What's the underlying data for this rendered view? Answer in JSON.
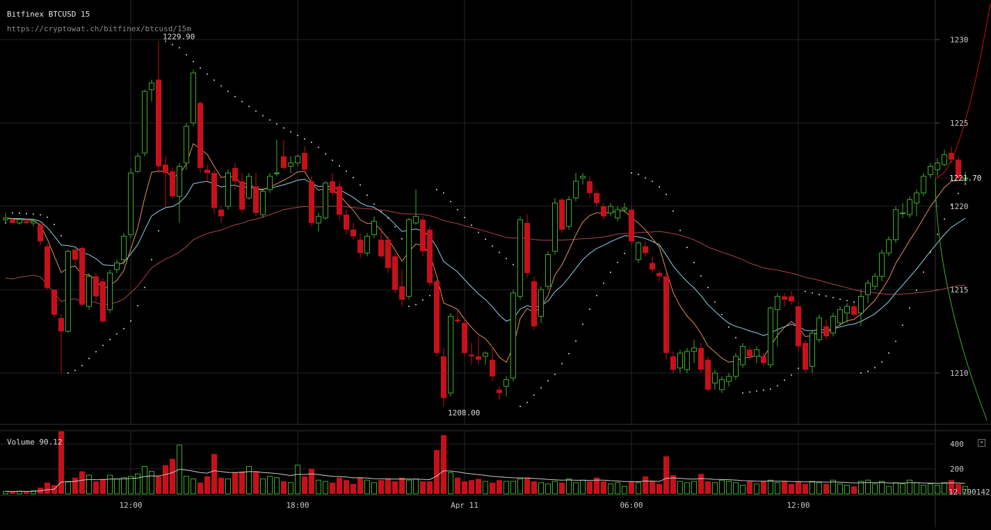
{
  "header": {
    "title": "Bitfinex BTCUSD 15",
    "url": "https://cryptowat.ch/bitfinex/btcusd/15m"
  },
  "volume_panel": {
    "label": "Volume",
    "value": "90.12",
    "close_glyph": "×"
  },
  "chart_data": {
    "type": "candlestick",
    "exchange": "Bitfinex",
    "pair": "BTCUSD",
    "interval": "15m",
    "price_axis": {
      "ticks": [
        1210,
        1215,
        1220,
        1225,
        1230
      ],
      "range": [
        1207,
        1233
      ]
    },
    "time_axis": {
      "labels": [
        {
          "label": "12:00",
          "index": 18
        },
        {
          "label": "18:00",
          "index": 42
        },
        {
          "label": "Apr 11",
          "index": 66
        },
        {
          "label": "06:00",
          "index": 90
        },
        {
          "label": "12:00",
          "index": 114
        }
      ]
    },
    "last_price": "1221.70",
    "annotations": [
      {
        "text": "1229.90",
        "index": 22,
        "price": 1229.9,
        "kind": "high"
      },
      {
        "text": "1208.00",
        "index": 63,
        "price": 1208.0,
        "kind": "low"
      }
    ],
    "volume_axis": {
      "ticks": [
        200,
        400
      ],
      "range": [
        0,
        500
      ],
      "last_volume_label": "12.790142"
    },
    "candles": [
      [
        1219.2,
        1219.6,
        1219.0,
        1219.3,
        20
      ],
      [
        1219.2,
        1219.3,
        1219.0,
        1219.0,
        18
      ],
      [
        1219.0,
        1219.3,
        1218.9,
        1219.2,
        22
      ],
      [
        1219.1,
        1219.3,
        1218.9,
        1219.0,
        20
      ],
      [
        1219.0,
        1219.2,
        1218.8,
        1219.1,
        25
      ],
      [
        1218.9,
        1219.1,
        1217.7,
        1217.9,
        50
      ],
      [
        1217.6,
        1217.8,
        1215.0,
        1215.1,
        90
      ],
      [
        1215.0,
        1215.0,
        1213.3,
        1213.5,
        70
      ],
      [
        1213.3,
        1213.5,
        1210.0,
        1212.5,
        500
      ],
      [
        1212.5,
        1217.4,
        1212.4,
        1217.3,
        100
      ],
      [
        1217.4,
        1217.5,
        1216.5,
        1216.8,
        130
      ],
      [
        1217.5,
        1217.6,
        1214.0,
        1214.1,
        180
      ],
      [
        1214.0,
        1216.0,
        1213.8,
        1215.8,
        150
      ],
      [
        1215.8,
        1216.0,
        1214.3,
        1214.6,
        100
      ],
      [
        1215.5,
        1215.7,
        1213.0,
        1213.1,
        120
      ],
      [
        1213.8,
        1216.2,
        1213.6,
        1216.0,
        150
      ],
      [
        1216.2,
        1216.8,
        1216.0,
        1216.6,
        120
      ],
      [
        1216.8,
        1218.4,
        1216.5,
        1218.2,
        130
      ],
      [
        1218.3,
        1222.3,
        1218.1,
        1222.0,
        140
      ],
      [
        1222.1,
        1223.2,
        1222.0,
        1223.0,
        160
      ],
      [
        1223.2,
        1227.0,
        1223.0,
        1226.9,
        220
      ],
      [
        1227.0,
        1227.6,
        1226.3,
        1227.4,
        180
      ],
      [
        1227.6,
        1229.9,
        1222.0,
        1222.4,
        140
      ],
      [
        1222.5,
        1223.0,
        1220.0,
        1222.0,
        230
      ],
      [
        1222.1,
        1222.3,
        1220.5,
        1220.6,
        280
      ],
      [
        1220.6,
        1222.6,
        1219.0,
        1222.4,
        390
      ],
      [
        1222.6,
        1225.0,
        1222.2,
        1224.8,
        140
      ],
      [
        1225.0,
        1228.2,
        1224.8,
        1228.0,
        120
      ],
      [
        1226.2,
        1226.3,
        1222.0,
        1222.3,
        90
      ],
      [
        1222.2,
        1222.5,
        1221.5,
        1222.0,
        140
      ],
      [
        1222.0,
        1222.2,
        1219.5,
        1219.9,
        320
      ],
      [
        1219.8,
        1220.0,
        1219.0,
        1219.4,
        130
      ],
      [
        1220.0,
        1222.2,
        1219.8,
        1222.0,
        120
      ],
      [
        1222.3,
        1222.6,
        1221.0,
        1221.5,
        170
      ],
      [
        1221.5,
        1222.0,
        1219.6,
        1219.8,
        180
      ],
      [
        1220.5,
        1222.0,
        1220.4,
        1221.8,
        220
      ],
      [
        1221.2,
        1222.0,
        1219.4,
        1219.6,
        180
      ],
      [
        1219.5,
        1221.0,
        1219.3,
        1220.9,
        120
      ],
      [
        1221.0,
        1222.0,
        1220.8,
        1221.8,
        140
      ],
      [
        1222.0,
        1224.0,
        1221.8,
        1222.0,
        130
      ],
      [
        1223.0,
        1224.0,
        1222.2,
        1222.3,
        100
      ],
      [
        1222.4,
        1223.0,
        1222.0,
        1222.6,
        90
      ],
      [
        1222.6,
        1223.1,
        1222.4,
        1223.0,
        230
      ],
      [
        1223.2,
        1223.6,
        1222.0,
        1222.2,
        140
      ],
      [
        1221.5,
        1221.8,
        1218.8,
        1219.0,
        200
      ],
      [
        1219.0,
        1219.6,
        1218.5,
        1219.4,
        110
      ],
      [
        1219.3,
        1221.5,
        1219.2,
        1221.4,
        100
      ],
      [
        1221.5,
        1222.0,
        1220.6,
        1220.8,
        90
      ],
      [
        1221.2,
        1221.5,
        1219.2,
        1219.5,
        130
      ],
      [
        1219.5,
        1219.8,
        1218.3,
        1218.6,
        110
      ],
      [
        1218.6,
        1219.0,
        1218.0,
        1218.2,
        80
      ],
      [
        1218.0,
        1218.4,
        1216.9,
        1217.2,
        130
      ],
      [
        1217.2,
        1218.4,
        1217.0,
        1218.2,
        110
      ],
      [
        1218.3,
        1219.4,
        1218.1,
        1219.1,
        90
      ],
      [
        1218.0,
        1218.8,
        1216.9,
        1217.0,
        110
      ],
      [
        1218.0,
        1218.2,
        1216.0,
        1216.3,
        120
      ],
      [
        1217.0,
        1217.2,
        1214.8,
        1215.0,
        100
      ],
      [
        1215.2,
        1216.2,
        1214.0,
        1214.4,
        130
      ],
      [
        1214.6,
        1219.3,
        1214.4,
        1219.2,
        110
      ],
      [
        1219.0,
        1221.0,
        1218.9,
        1219.4,
        120
      ],
      [
        1219.2,
        1219.4,
        1217.0,
        1217.3,
        100
      ],
      [
        1218.6,
        1218.8,
        1215.2,
        1215.4,
        100
      ],
      [
        1215.5,
        1215.6,
        1211.0,
        1211.2,
        350
      ],
      [
        1211.0,
        1211.5,
        1208.0,
        1208.5,
        470
      ],
      [
        1208.8,
        1213.6,
        1208.6,
        1213.4,
        170
      ],
      [
        1213.2,
        1213.8,
        1213.0,
        1213.1,
        130
      ],
      [
        1213.0,
        1213.3,
        1211.0,
        1211.2,
        100
      ],
      [
        1211.1,
        1211.8,
        1210.5,
        1211.0,
        110
      ],
      [
        1211.0,
        1212.2,
        1210.5,
        1210.8,
        120
      ],
      [
        1211.0,
        1211.3,
        1210.5,
        1211.2,
        100
      ],
      [
        1210.8,
        1211.6,
        1209.5,
        1209.8,
        90
      ],
      [
        1209.0,
        1209.2,
        1208.4,
        1208.8,
        110
      ],
      [
        1209.2,
        1209.8,
        1208.6,
        1209.6,
        100
      ],
      [
        1209.7,
        1215.0,
        1209.5,
        1214.8,
        100
      ],
      [
        1214.6,
        1219.4,
        1214.4,
        1219.2,
        120
      ],
      [
        1219.0,
        1219.5,
        1215.7,
        1216.0,
        130
      ],
      [
        1215.5,
        1215.8,
        1212.6,
        1212.8,
        100
      ],
      [
        1213.4,
        1215.2,
        1213.0,
        1215.0,
        90
      ],
      [
        1215.2,
        1217.3,
        1215.0,
        1217.1,
        80
      ],
      [
        1217.3,
        1220.5,
        1217.1,
        1220.2,
        100
      ],
      [
        1220.4,
        1220.5,
        1218.4,
        1218.6,
        90
      ],
      [
        1218.8,
        1220.6,
        1218.6,
        1220.4,
        120
      ],
      [
        1220.5,
        1222.0,
        1220.3,
        1221.5,
        90
      ],
      [
        1221.7,
        1222.0,
        1221.3,
        1221.8,
        110
      ],
      [
        1221.5,
        1221.8,
        1220.5,
        1220.8,
        100
      ],
      [
        1220.8,
        1221.0,
        1220.0,
        1220.2,
        130
      ],
      [
        1220.0,
        1220.2,
        1219.2,
        1219.4,
        100
      ],
      [
        1219.6,
        1220.2,
        1219.4,
        1220.0,
        80
      ],
      [
        1219.3,
        1220.0,
        1219.1,
        1219.8,
        90
      ],
      [
        1219.8,
        1220.2,
        1219.6,
        1219.9,
        60
      ],
      [
        1219.8,
        1220.0,
        1217.6,
        1217.9,
        100
      ],
      [
        1216.8,
        1217.9,
        1216.6,
        1217.8,
        90
      ],
      [
        1217.6,
        1217.9,
        1217.0,
        1217.2,
        140
      ],
      [
        1216.6,
        1217.0,
        1216.0,
        1216.2,
        100
      ],
      [
        1216.0,
        1216.2,
        1215.5,
        1215.8,
        80
      ],
      [
        1215.8,
        1216.0,
        1210.8,
        1211.2,
        300
      ],
      [
        1211.0,
        1211.3,
        1210.0,
        1210.2,
        150
      ],
      [
        1210.3,
        1211.4,
        1210.0,
        1211.2,
        100
      ],
      [
        1210.2,
        1211.5,
        1210.0,
        1211.3,
        90
      ],
      [
        1211.3,
        1212.0,
        1210.6,
        1211.5,
        100
      ],
      [
        1211.5,
        1211.8,
        1210.0,
        1210.2,
        160
      ],
      [
        1210.8,
        1211.0,
        1208.9,
        1209.0,
        100
      ],
      [
        1209.4,
        1210.2,
        1209.0,
        1210.0,
        90
      ],
      [
        1209.0,
        1209.8,
        1208.8,
        1209.6,
        110
      ],
      [
        1209.5,
        1210.0,
        1209.2,
        1209.8,
        100
      ],
      [
        1209.8,
        1211.2,
        1209.6,
        1211.0,
        90
      ],
      [
        1210.5,
        1211.8,
        1210.3,
        1211.6,
        70
      ],
      [
        1211.4,
        1211.6,
        1210.8,
        1211.0,
        100
      ],
      [
        1211.0,
        1211.6,
        1210.6,
        1211.4,
        80
      ],
      [
        1211.0,
        1211.2,
        1210.4,
        1210.6,
        100
      ],
      [
        1210.5,
        1214.0,
        1210.3,
        1213.9,
        110
      ],
      [
        1213.8,
        1214.8,
        1211.6,
        1214.6,
        90
      ],
      [
        1214.6,
        1214.8,
        1214.0,
        1214.4,
        100
      ],
      [
        1214.6,
        1214.9,
        1214.1,
        1214.3,
        80
      ],
      [
        1214.0,
        1214.3,
        1211.3,
        1211.6,
        100
      ],
      [
        1211.8,
        1212.0,
        1210.0,
        1210.2,
        80
      ],
      [
        1210.4,
        1212.6,
        1210.0,
        1212.4,
        100
      ],
      [
        1212.0,
        1213.5,
        1211.8,
        1213.3,
        90
      ],
      [
        1212.8,
        1213.2,
        1212.0,
        1212.2,
        80
      ],
      [
        1212.4,
        1213.6,
        1212.2,
        1213.4,
        110
      ],
      [
        1213.0,
        1214.0,
        1212.8,
        1213.8,
        80
      ],
      [
        1213.6,
        1214.2,
        1213.0,
        1214.0,
        70
      ],
      [
        1214.0,
        1214.2,
        1213.3,
        1213.5,
        60
      ],
      [
        1213.6,
        1215.0,
        1212.8,
        1214.6,
        100
      ],
      [
        1214.7,
        1215.6,
        1214.2,
        1215.4,
        110
      ],
      [
        1215.2,
        1216.0,
        1215.0,
        1215.8,
        80
      ],
      [
        1215.8,
        1217.4,
        1215.5,
        1217.2,
        100
      ],
      [
        1217.2,
        1218.2,
        1217.0,
        1218.0,
        60
      ],
      [
        1218.0,
        1220.0,
        1217.8,
        1219.8,
        90
      ],
      [
        1219.6,
        1220.2,
        1219.3,
        1219.6,
        80
      ],
      [
        1219.5,
        1220.6,
        1219.3,
        1220.4,
        110
      ],
      [
        1220.2,
        1221.0,
        1219.4,
        1220.8,
        90
      ],
      [
        1220.8,
        1222.0,
        1220.6,
        1221.8,
        70
      ],
      [
        1221.9,
        1222.6,
        1221.7,
        1222.4,
        80
      ],
      [
        1222.2,
        1222.9,
        1221.8,
        1222.6,
        70
      ],
      [
        1222.5,
        1223.4,
        1222.4,
        1223.1,
        90
      ],
      [
        1223.2,
        1223.6,
        1222.6,
        1222.8,
        110
      ],
      [
        1222.8,
        1223.0,
        1221.6,
        1221.7,
        80
      ],
      [
        1221.7,
        1222.1,
        1221.4,
        1221.7,
        60
      ]
    ],
    "indicators": [
      "ema_fast",
      "ema_slow",
      "ma_long",
      "parabolic_sar",
      "volume_ma"
    ]
  }
}
